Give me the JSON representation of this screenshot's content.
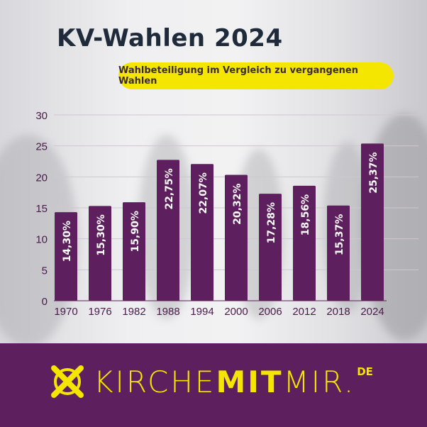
{
  "title": "KV-Wahlen 2024",
  "subtitle": "Wahlbeteiligung im Vergleich zu vergangenen Wahlen",
  "logo": {
    "part1": "KIRCHE",
    "part2": "MIT",
    "part3": "MIR.",
    "tld": "DE"
  },
  "colors": {
    "bar": "#5e1f5e",
    "accent": "#f4e600",
    "band": "#5e1f5e"
  },
  "chart_data": {
    "type": "bar",
    "categories": [
      "1970",
      "1976",
      "1982",
      "1988",
      "1994",
      "2000",
      "2006",
      "2012",
      "2018",
      "2024"
    ],
    "values": [
      14.3,
      15.3,
      15.9,
      22.75,
      22.07,
      20.32,
      17.28,
      18.56,
      15.37,
      25.37
    ],
    "data_labels": [
      "14,30%",
      "15,30%",
      "15,90%",
      "22,75%",
      "22,07%",
      "20,32%",
      "17,28%",
      "18,56%",
      "15,37%",
      "25,37%"
    ],
    "yticks": [
      0,
      5,
      10,
      15,
      20,
      25,
      30
    ],
    "ylim": [
      0,
      30
    ],
    "grid": true
  }
}
